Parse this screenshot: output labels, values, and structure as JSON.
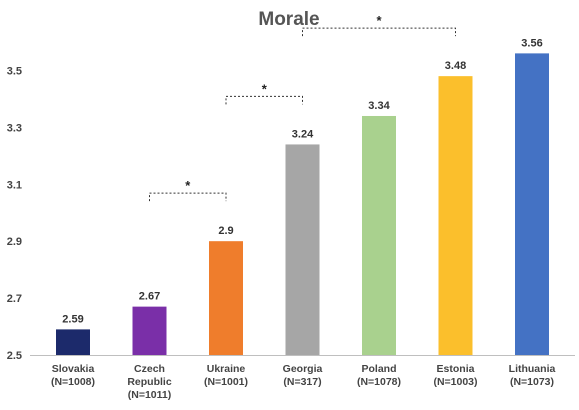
{
  "chart_data": {
    "type": "bar",
    "title": "Morale",
    "xlabel": "",
    "ylabel": "",
    "ylim": [
      2.5,
      3.6
    ],
    "yticks": [
      "2.5",
      "2.7",
      "2.9",
      "3.1",
      "3.3",
      "3.5"
    ],
    "grid": false,
    "legend": "none",
    "categories": [
      [
        "Slovakia",
        "(N=1008)"
      ],
      [
        "Czech",
        "Republic",
        "(N=1011)"
      ],
      [
        "Ukraine",
        "(N=1001)"
      ],
      [
        "Georgia",
        "(N=317)"
      ],
      [
        "Poland",
        "(N=1078)"
      ],
      [
        "Estonia",
        "(N=1003)"
      ],
      [
        "Lithuania",
        "(N=1073)"
      ]
    ],
    "values": [
      2.59,
      2.67,
      2.9,
      3.24,
      3.34,
      3.48,
      3.56
    ],
    "value_labels": [
      "2.59",
      "2.67",
      "2.9",
      "3.24",
      "3.34",
      "3.48",
      "3.56"
    ],
    "colors": [
      "#1c2a6b",
      "#7a2fa8",
      "#ef7d2c",
      "#a6a6a6",
      "#a9d18e",
      "#fbbf2c",
      "#4472c4"
    ],
    "annotations": [
      {
        "from": 1,
        "to": 2,
        "label": "*"
      },
      {
        "from": 2,
        "to": 3,
        "label": "*"
      },
      {
        "from": 3,
        "to": 5,
        "label": "*"
      }
    ]
  }
}
